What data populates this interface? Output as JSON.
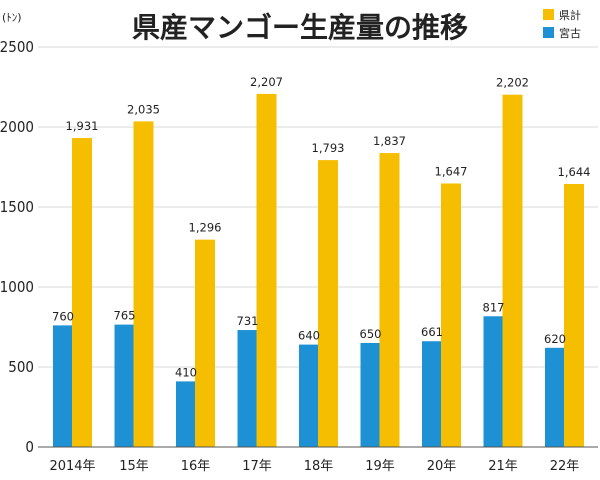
{
  "unit_label": "(ﾄﾝ)",
  "chart_data": {
    "type": "bar",
    "title": "県産マンゴー生産量の推移",
    "xlabel": "",
    "ylabel": "",
    "unit": "(ﾄﾝ)",
    "ylim": [
      0,
      2500
    ],
    "yticks": [
      "0",
      "500",
      "1000",
      "1500",
      "2000",
      "2500"
    ],
    "categories": [
      "2014年",
      "15年",
      "16年",
      "17年",
      "18年",
      "19年",
      "20年",
      "21年",
      "22年"
    ],
    "legend_position": "top-right",
    "grid": true,
    "series": [
      {
        "name": "宮古",
        "color": "#1e90d4",
        "values": [
          760,
          765,
          410,
          731,
          640,
          650,
          661,
          817,
          620
        ],
        "labels": [
          "760",
          "765",
          "410",
          "731",
          "640",
          "650",
          "661",
          "817",
          "620"
        ]
      },
      {
        "name": "県計",
        "color": "#f5be00",
        "values": [
          1931,
          2035,
          1296,
          2207,
          1793,
          1837,
          1647,
          2202,
          1644
        ],
        "labels": [
          "1,931",
          "2,035",
          "1,296",
          "2,207",
          "1,793",
          "1,837",
          "1,647",
          "2,202",
          "1,644"
        ]
      }
    ]
  }
}
